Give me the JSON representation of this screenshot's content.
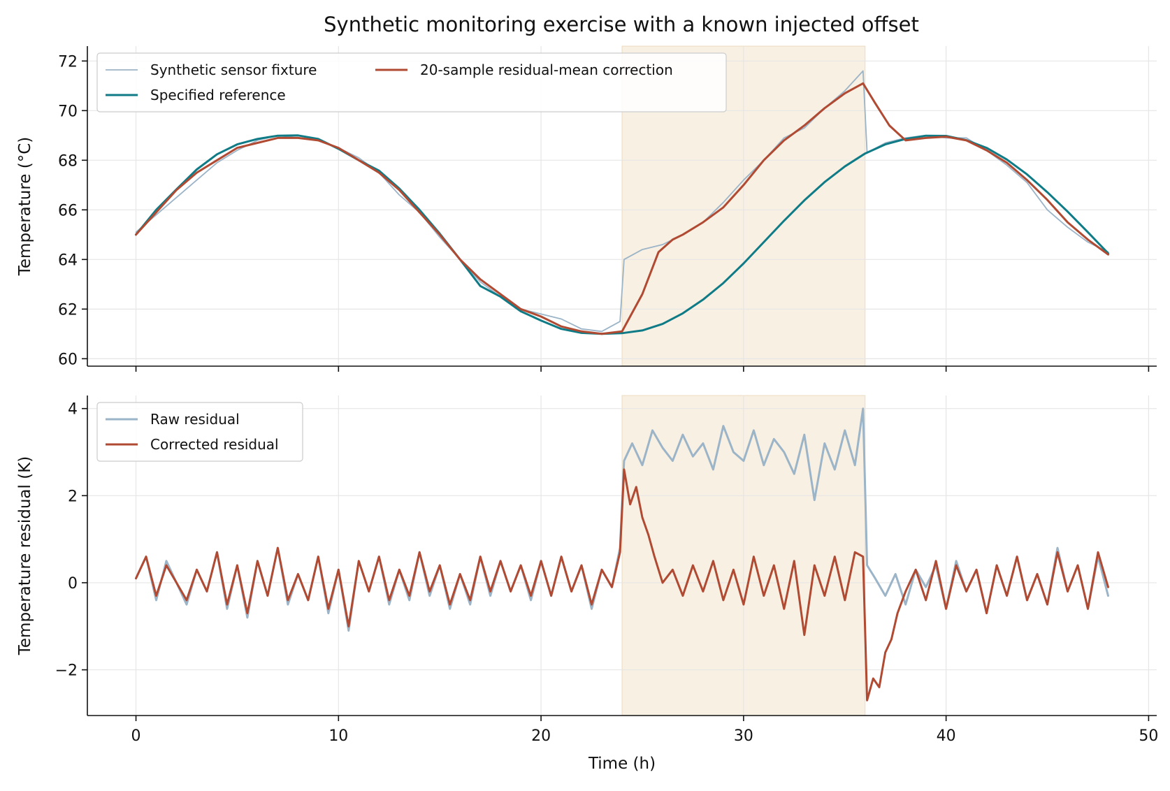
{
  "title": "Synthetic monitoring exercise with a known injected offset",
  "chart_data": [
    {
      "type": "line",
      "ylabel": "Temperature (°C)",
      "xlabel": "",
      "xlim": [
        -2.4,
        50.4
      ],
      "ylim": [
        59.7,
        72.6
      ],
      "xticks": [
        0,
        10,
        20,
        30,
        40,
        50
      ],
      "xtick_labels": [
        "",
        "",
        "",
        "",
        "",
        ""
      ],
      "yticks": [
        60,
        62,
        64,
        66,
        68,
        70,
        72
      ],
      "ytick_labels": [
        "60",
        "62",
        "64",
        "66",
        "68",
        "70",
        "72"
      ],
      "grid": true,
      "legend": {
        "placement": "top-left",
        "columns": 2
      },
      "shaded_span": {
        "x": [
          24,
          36
        ],
        "color": "#f2e4cc"
      },
      "series": [
        {
          "name": "Synthetic sensor fixture",
          "color": "#9bb4c7",
          "x": [
            0,
            1,
            2,
            3,
            4,
            5,
            6,
            7,
            8,
            9,
            10,
            11,
            12,
            13,
            14,
            15,
            16,
            17,
            18,
            19,
            20,
            21,
            22,
            23,
            23.9,
            24.1,
            25,
            26,
            27,
            28,
            29,
            30,
            31,
            32,
            33,
            34,
            35,
            35.9,
            36.1,
            37,
            38,
            39,
            40,
            41,
            42,
            43,
            44,
            45,
            46,
            47,
            48
          ],
          "y": [
            65.1,
            65.8,
            66.5,
            67.2,
            67.9,
            68.4,
            68.8,
            69.0,
            68.9,
            68.8,
            68.5,
            68.1,
            67.5,
            66.6,
            65.9,
            64.9,
            64.0,
            63.1,
            62.5,
            62.0,
            61.8,
            61.6,
            61.2,
            61.1,
            61.5,
            64.0,
            64.4,
            64.6,
            65.0,
            65.5,
            66.3,
            67.2,
            68.0,
            68.9,
            69.3,
            70.1,
            70.8,
            71.6,
            68.3,
            68.7,
            68.9,
            69.0,
            68.9,
            68.9,
            68.4,
            67.8,
            67.1,
            66.0,
            65.3,
            64.7,
            64.3
          ]
        },
        {
          "name": "Specified reference",
          "color": "#0f7b86",
          "x": [
            0,
            1,
            2,
            3,
            4,
            5,
            6,
            7,
            8,
            9,
            10,
            11,
            12,
            13,
            14,
            15,
            16,
            17,
            18,
            19,
            20,
            21,
            22,
            23,
            24,
            25,
            26,
            27,
            28,
            29,
            30,
            31,
            32,
            33,
            34,
            35,
            36,
            37,
            38,
            39,
            40,
            41,
            42,
            43,
            44,
            45,
            46,
            47,
            48
          ],
          "y": [
            65.0,
            66.0,
            66.83,
            67.63,
            68.24,
            68.64,
            68.86,
            68.99,
            69.0,
            68.86,
            68.46,
            68.0,
            67.58,
            66.86,
            66.0,
            65.04,
            64.0,
            62.93,
            62.5,
            61.91,
            61.54,
            61.2,
            61.04,
            61.0,
            61.03,
            61.14,
            61.4,
            61.83,
            62.38,
            63.05,
            63.84,
            64.7,
            65.56,
            66.38,
            67.12,
            67.75,
            68.27,
            68.64,
            68.86,
            68.99,
            68.98,
            68.81,
            68.5,
            68.03,
            67.43,
            66.71,
            65.93,
            65.1,
            64.25
          ]
        },
        {
          "name": "20-sample residual-mean correction",
          "color": "#b04a32",
          "x": [
            0,
            1,
            2,
            3,
            4,
            5,
            6,
            7,
            8,
            9,
            10,
            11,
            12,
            13,
            14,
            15,
            16,
            17,
            18,
            19,
            20,
            21,
            22,
            23,
            24,
            25,
            25.8,
            26.5,
            27,
            28,
            29,
            30,
            31,
            32,
            33,
            34,
            35,
            35.9,
            36.5,
            37.2,
            38,
            39,
            40,
            41,
            42,
            43,
            44,
            45,
            46,
            47,
            48
          ],
          "y": [
            65.0,
            65.9,
            66.8,
            67.5,
            68.0,
            68.5,
            68.7,
            68.9,
            68.9,
            68.8,
            68.5,
            68.0,
            67.5,
            66.8,
            65.9,
            65.0,
            64.0,
            63.2,
            62.6,
            62.0,
            61.7,
            61.3,
            61.1,
            61.0,
            61.1,
            62.6,
            64.3,
            64.8,
            65.0,
            65.5,
            66.1,
            67.0,
            68.0,
            68.8,
            69.4,
            70.1,
            70.7,
            71.1,
            70.3,
            69.4,
            68.8,
            68.9,
            68.95,
            68.8,
            68.4,
            67.9,
            67.2,
            66.4,
            65.5,
            64.8,
            64.2
          ]
        }
      ]
    },
    {
      "type": "line",
      "ylabel": "Temperature residual (K)",
      "xlabel": "Time (h)",
      "xlim": [
        -2.4,
        50.4
      ],
      "ylim": [
        -3.05,
        4.3
      ],
      "xticks": [
        0,
        10,
        20,
        30,
        40,
        50
      ],
      "xtick_labels": [
        "0",
        "10",
        "20",
        "30",
        "40",
        "50"
      ],
      "yticks": [
        -2,
        0,
        2,
        4
      ],
      "ytick_labels": [
        "−2",
        "0",
        "2",
        "4"
      ],
      "grid": true,
      "legend": {
        "placement": "top-left",
        "columns": 1
      },
      "shaded_span": {
        "x": [
          24,
          36
        ],
        "color": "#f2e4cc"
      },
      "series": [
        {
          "name": "Raw residual",
          "color": "#9bb4c7",
          "x": [
            0,
            0.5,
            1,
            1.5,
            2,
            2.5,
            3,
            3.5,
            4,
            4.5,
            5,
            5.5,
            6,
            6.5,
            7,
            7.5,
            8,
            8.5,
            9,
            9.5,
            10,
            10.5,
            11,
            11.5,
            12,
            12.5,
            13,
            13.5,
            14,
            14.5,
            15,
            15.5,
            16,
            16.5,
            17,
            17.5,
            18,
            18.5,
            19,
            19.5,
            20,
            20.5,
            21,
            21.5,
            22,
            22.5,
            23,
            23.5,
            23.9,
            24.1,
            24.5,
            25,
            25.5,
            26,
            26.5,
            27,
            27.5,
            28,
            28.5,
            29,
            29.5,
            30,
            30.5,
            31,
            31.5,
            32,
            32.5,
            33,
            33.5,
            34,
            34.5,
            35,
            35.5,
            35.9,
            36.1,
            36.5,
            37,
            37.5,
            38,
            38.5,
            39,
            39.5,
            40,
            40.5,
            41,
            41.5,
            42,
            42.5,
            43,
            43.5,
            44,
            44.5,
            45,
            45.5,
            46,
            46.5,
            47,
            47.5,
            48
          ],
          "y": [
            0.1,
            0.6,
            -0.4,
            0.5,
            0.0,
            -0.5,
            0.3,
            -0.2,
            0.7,
            -0.6,
            0.4,
            -0.8,
            0.5,
            -0.3,
            0.8,
            -0.5,
            0.2,
            -0.4,
            0.6,
            -0.7,
            0.3,
            -1.1,
            0.5,
            -0.2,
            0.6,
            -0.5,
            0.3,
            -0.4,
            0.7,
            -0.3,
            0.4,
            -0.6,
            0.2,
            -0.5,
            0.6,
            -0.3,
            0.5,
            -0.2,
            0.4,
            -0.4,
            0.5,
            -0.3,
            0.6,
            -0.2,
            0.4,
            -0.6,
            0.3,
            -0.1,
            0.8,
            2.8,
            3.2,
            2.7,
            3.5,
            3.1,
            2.8,
            3.4,
            2.9,
            3.2,
            2.6,
            3.6,
            3.0,
            2.8,
            3.5,
            2.7,
            3.3,
            3.0,
            2.5,
            3.4,
            1.9,
            3.2,
            2.6,
            3.5,
            2.7,
            4.0,
            0.4,
            0.1,
            -0.3,
            0.2,
            -0.5,
            0.3,
            -0.1,
            0.4,
            -0.6,
            0.5,
            -0.2,
            0.3,
            -0.7,
            0.4,
            -0.3,
            0.6,
            -0.4,
            0.2,
            -0.5,
            0.8,
            -0.2,
            0.4,
            -0.6,
            0.6,
            -0.3
          ]
        },
        {
          "name": "Corrected residual",
          "color": "#b04a32",
          "x": [
            0,
            0.5,
            1,
            1.5,
            2,
            2.5,
            3,
            3.5,
            4,
            4.5,
            5,
            5.5,
            6,
            6.5,
            7,
            7.5,
            8,
            8.5,
            9,
            9.5,
            10,
            10.5,
            11,
            11.5,
            12,
            12.5,
            13,
            13.5,
            14,
            14.5,
            15,
            15.5,
            16,
            16.5,
            17,
            17.5,
            18,
            18.5,
            19,
            19.5,
            20,
            20.5,
            21,
            21.5,
            22,
            22.5,
            23,
            23.5,
            23.9,
            24.1,
            24.4,
            24.7,
            25,
            25.3,
            25.6,
            26,
            26.5,
            27,
            27.5,
            28,
            28.5,
            29,
            29.5,
            30,
            30.5,
            31,
            31.5,
            32,
            32.5,
            33,
            33.5,
            34,
            34.5,
            35,
            35.5,
            35.9,
            36.1,
            36.4,
            36.7,
            37,
            37.3,
            37.6,
            38,
            38.5,
            39,
            39.5,
            40,
            40.5,
            41,
            41.5,
            42,
            42.5,
            43,
            43.5,
            44,
            44.5,
            45,
            45.5,
            46,
            46.5,
            47,
            47.5,
            48
          ],
          "y": [
            0.1,
            0.6,
            -0.3,
            0.4,
            0.0,
            -0.4,
            0.3,
            -0.2,
            0.7,
            -0.5,
            0.4,
            -0.7,
            0.5,
            -0.3,
            0.8,
            -0.4,
            0.2,
            -0.4,
            0.6,
            -0.6,
            0.3,
            -1.0,
            0.5,
            -0.2,
            0.6,
            -0.4,
            0.3,
            -0.3,
            0.7,
            -0.2,
            0.4,
            -0.5,
            0.2,
            -0.4,
            0.6,
            -0.2,
            0.5,
            -0.2,
            0.4,
            -0.3,
            0.5,
            -0.3,
            0.6,
            -0.2,
            0.4,
            -0.5,
            0.3,
            -0.1,
            0.7,
            2.6,
            1.8,
            2.2,
            1.5,
            1.1,
            0.6,
            0.0,
            0.3,
            -0.3,
            0.4,
            -0.2,
            0.5,
            -0.4,
            0.3,
            -0.5,
            0.6,
            -0.3,
            0.4,
            -0.6,
            0.5,
            -1.2,
            0.4,
            -0.3,
            0.6,
            -0.4,
            0.7,
            0.6,
            -2.7,
            -2.2,
            -2.4,
            -1.6,
            -1.3,
            -0.7,
            -0.2,
            0.3,
            -0.4,
            0.5,
            -0.6,
            0.4,
            -0.2,
            0.3,
            -0.7,
            0.4,
            -0.3,
            0.6,
            -0.4,
            0.2,
            -0.5,
            0.7,
            -0.2,
            0.4,
            -0.6,
            0.7,
            -0.1
          ]
        }
      ]
    }
  ]
}
